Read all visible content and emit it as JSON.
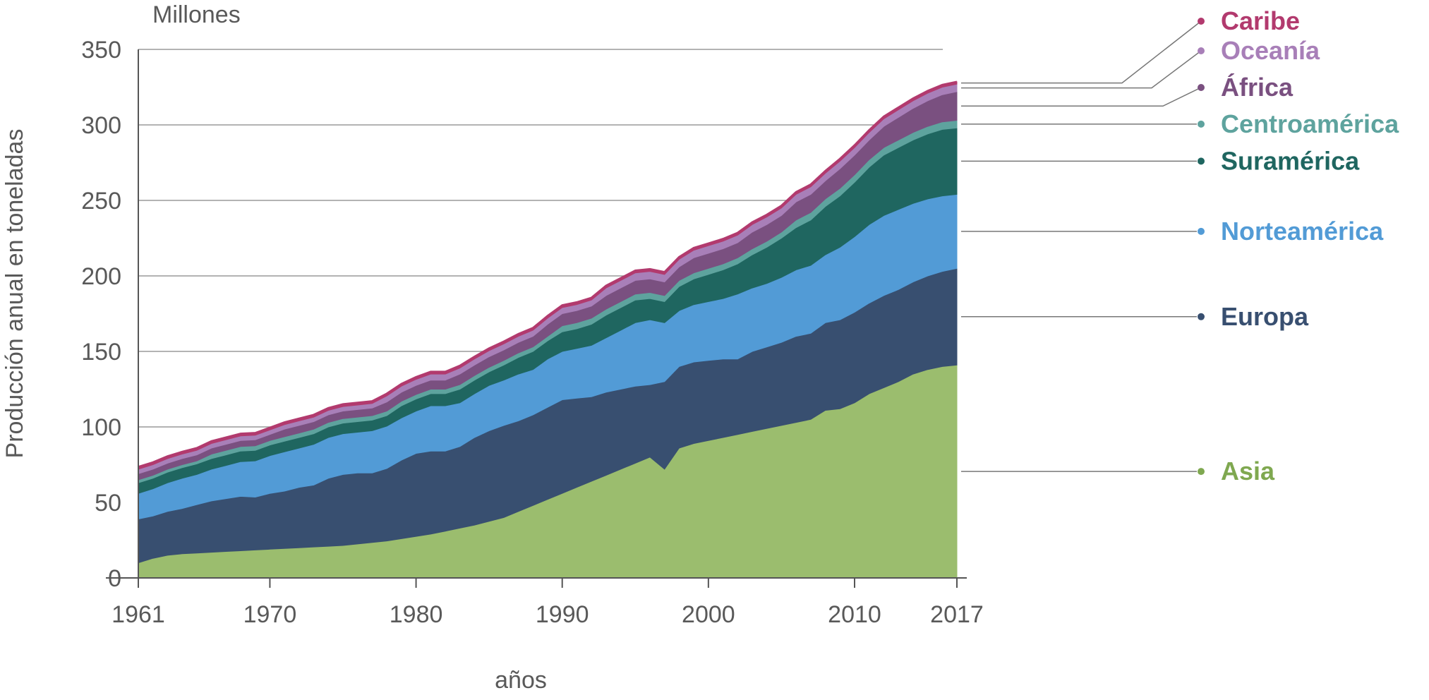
{
  "chart_data": {
    "type": "area",
    "stacked": true,
    "unit_label": "Millones",
    "ylabel": "Producción anual en toneladas",
    "xlabel": "años",
    "ylim": [
      0,
      350
    ],
    "xlim": [
      1961,
      2017
    ],
    "yticks": [
      0,
      50,
      100,
      150,
      200,
      250,
      300,
      350
    ],
    "xticks": [
      1961,
      1970,
      1980,
      1990,
      2000,
      2010,
      2017
    ],
    "grid": "horizontal",
    "legend_placement": "right",
    "x": [
      1961,
      1962,
      1963,
      1964,
      1965,
      1966,
      1967,
      1968,
      1969,
      1970,
      1971,
      1972,
      1973,
      1974,
      1975,
      1976,
      1977,
      1978,
      1979,
      1980,
      1981,
      1982,
      1983,
      1984,
      1985,
      1986,
      1987,
      1988,
      1989,
      1990,
      1991,
      1992,
      1993,
      1994,
      1995,
      1996,
      1997,
      1998,
      1999,
      2000,
      2001,
      2002,
      2003,
      2004,
      2005,
      2006,
      2007,
      2008,
      2009,
      2010,
      2011,
      2012,
      2013,
      2014,
      2015,
      2016,
      2017
    ],
    "series": [
      {
        "name": "Asia",
        "color": "#9bbd6e",
        "values": [
          10,
          13,
          15,
          16,
          16.5,
          17,
          17.5,
          18,
          18.5,
          19,
          19.5,
          20,
          20.5,
          21,
          21.5,
          22.5,
          23.5,
          24.5,
          26,
          27.5,
          29,
          31,
          33,
          35,
          37.5,
          40,
          44,
          48,
          52,
          56,
          60,
          64,
          68,
          72,
          76,
          80,
          72,
          86,
          89,
          91,
          93,
          95,
          97,
          99,
          101,
          103,
          105,
          111,
          112,
          116,
          122,
          126,
          130,
          135,
          138,
          140,
          141
        ]
      },
      {
        "name": "Europa",
        "color": "#384f70",
        "values": [
          29,
          28,
          29,
          30,
          32,
          34,
          35,
          36,
          35,
          37,
          38,
          40,
          41,
          45,
          47,
          47,
          46,
          48,
          52,
          55,
          55,
          53,
          54,
          58,
          60,
          61,
          60,
          60,
          61,
          62,
          59,
          56,
          55,
          53,
          51,
          48,
          58,
          54,
          54,
          53,
          52,
          50,
          53,
          54,
          55,
          57,
          57,
          58,
          59,
          60,
          60,
          61,
          61,
          61,
          62,
          63,
          64
        ]
      },
      {
        "name": "Norteamérica",
        "color": "#529bd6",
        "values": [
          17,
          18,
          19,
          20,
          20,
          21,
          22,
          23,
          24,
          25,
          26,
          26,
          27,
          27,
          27,
          27,
          28,
          28,
          28,
          28,
          30,
          30,
          29,
          29,
          30,
          30,
          31,
          30,
          32,
          32,
          33,
          34,
          36,
          39,
          42,
          43,
          39,
          37,
          38,
          39,
          40,
          43,
          42,
          42,
          43,
          44,
          45,
          45,
          48,
          50,
          52,
          53,
          53,
          52,
          51,
          50,
          49
        ]
      },
      {
        "name": "Suramérica",
        "color": "#1f6660",
        "values": [
          7,
          7,
          7,
          7,
          7,
          7,
          7,
          7,
          7,
          7,
          7,
          7,
          7,
          7,
          7,
          7,
          7,
          7,
          8,
          8,
          8,
          8,
          9,
          9,
          9,
          10,
          11,
          12,
          12,
          13,
          13,
          14,
          15,
          15,
          15,
          14,
          14,
          16,
          17,
          18,
          19,
          20,
          22,
          24,
          26,
          28,
          30,
          32,
          34,
          36,
          38,
          40,
          41,
          42,
          43,
          44,
          44
        ]
      },
      {
        "name": "Centroamérica",
        "color": "#5ea39e",
        "values": [
          2,
          2,
          2,
          2,
          2,
          3,
          3,
          3,
          3,
          3,
          3,
          3,
          3,
          3,
          3,
          3,
          3,
          3,
          3,
          3,
          3,
          3,
          3,
          3,
          3,
          3,
          3,
          3,
          3,
          4,
          4,
          4,
          4,
          4,
          4,
          4,
          4,
          4,
          4,
          4,
          4,
          4,
          4,
          4,
          4,
          5,
          5,
          5,
          5,
          5,
          5,
          5,
          5,
          5,
          5,
          5,
          5
        ]
      },
      {
        "name": "África",
        "color": "#7a5080",
        "values": [
          4,
          4,
          4,
          4,
          4,
          4,
          4,
          4,
          4,
          4,
          5,
          5,
          5,
          5,
          5,
          5,
          5,
          6,
          6,
          6,
          6,
          6,
          7,
          7,
          7,
          7,
          7,
          7,
          8,
          8,
          8,
          8,
          9,
          9,
          9,
          9,
          9,
          9,
          10,
          10,
          10,
          10,
          11,
          11,
          11,
          12,
          12,
          12,
          13,
          13,
          13,
          14,
          15,
          16,
          17,
          18,
          19
        ]
      },
      {
        "name": "Oceanía",
        "color": "#a87fb8",
        "values": [
          3,
          3,
          3,
          3,
          3,
          3,
          3,
          3,
          3,
          3,
          3,
          3,
          3,
          3,
          3,
          3,
          3,
          4,
          4,
          4,
          4,
          4,
          4,
          4,
          4,
          4,
          4,
          4,
          4,
          4,
          4,
          4,
          5,
          5,
          5,
          5,
          5,
          5,
          5,
          5,
          5,
          5,
          5,
          5,
          5,
          5,
          5,
          5,
          5,
          5,
          5,
          5,
          5,
          5,
          5,
          5,
          5
        ]
      },
      {
        "name": "Caribe",
        "color": "#b23a6e",
        "values": [
          1.5,
          1.5,
          1.5,
          1.5,
          1.5,
          1.5,
          1.5,
          1.5,
          1.5,
          1.5,
          1.5,
          1.5,
          1.5,
          1.5,
          1.5,
          1.5,
          1.5,
          1.5,
          1.5,
          1.5,
          1.5,
          1.5,
          1.5,
          1.5,
          1.5,
          1.5,
          1.5,
          1.5,
          1.5,
          1.5,
          1.5,
          1.5,
          1.5,
          1.5,
          1.5,
          1.5,
          1.5,
          1.5,
          1.5,
          1.5,
          1.5,
          1.5,
          1.5,
          1.5,
          1.5,
          1.5,
          1.5,
          1.5,
          1.5,
          1.5,
          1.5,
          1.5,
          1.5,
          1.5,
          1.5,
          1.5,
          1.5
        ]
      }
    ]
  }
}
